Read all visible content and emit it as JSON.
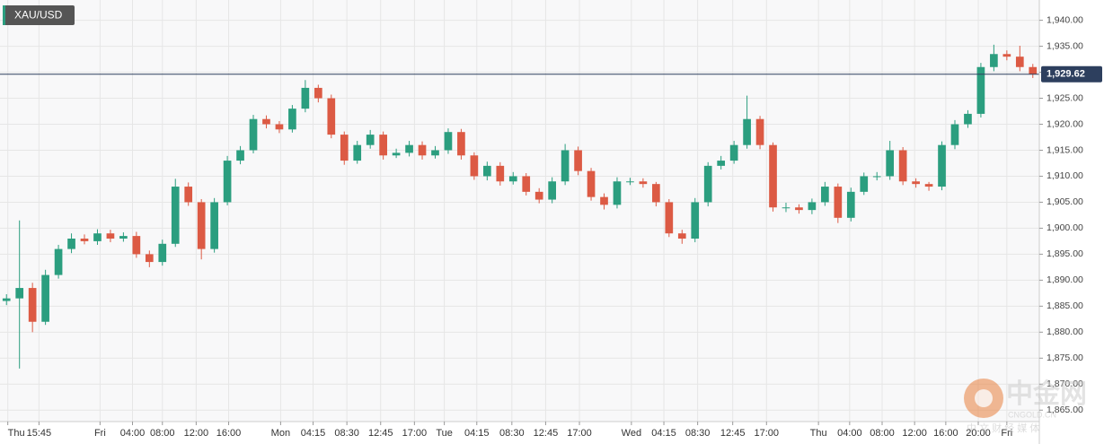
{
  "chart_data": {
    "type": "candlestick",
    "symbol": "XAU/USD",
    "xlim": [
      -0.5,
      79.5
    ],
    "ylim": [
      1862.8,
      1943.9
    ],
    "yticks": [
      {
        "value": 1865,
        "label": "1,865.00"
      },
      {
        "value": 1870,
        "label": "1,870.00"
      },
      {
        "value": 1875,
        "label": "1,875.00"
      },
      {
        "value": 1880,
        "label": "1,880.00"
      },
      {
        "value": 1885,
        "label": "1,885.00"
      },
      {
        "value": 1890,
        "label": "1,890.00"
      },
      {
        "value": 1895,
        "label": "1,895.00"
      },
      {
        "value": 1900,
        "label": "1,900.00"
      },
      {
        "value": 1905,
        "label": "1,905.00"
      },
      {
        "value": 1910,
        "label": "1,910.00"
      },
      {
        "value": 1915,
        "label": "1,915.00"
      },
      {
        "value": 1920,
        "label": "1,920.00"
      },
      {
        "value": 1925,
        "label": "1,925.00"
      },
      {
        "value": 1930,
        "label": "1,930.00"
      },
      {
        "value": 1935,
        "label": "1,935.00"
      },
      {
        "value": 1940,
        "label": "1,940.00"
      }
    ],
    "xticks": [
      {
        "value": 0.1,
        "label": "Thu"
      },
      {
        "value": 2.5,
        "label": "15:45"
      },
      {
        "value": 7.2,
        "label": "Fri"
      },
      {
        "value": 9.7,
        "label": "04:00"
      },
      {
        "value": 12.0,
        "label": "08:00"
      },
      {
        "value": 14.6,
        "label": "12:00"
      },
      {
        "value": 17.1,
        "label": "16:00"
      },
      {
        "value": 21.1,
        "label": "Mon"
      },
      {
        "value": 23.6,
        "label": "04:15"
      },
      {
        "value": 26.2,
        "label": "08:30"
      },
      {
        "value": 28.8,
        "label": "12:45"
      },
      {
        "value": 31.4,
        "label": "17:00"
      },
      {
        "value": 33.7,
        "label": "Tue"
      },
      {
        "value": 36.2,
        "label": "04:15"
      },
      {
        "value": 38.9,
        "label": "08:30"
      },
      {
        "value": 41.5,
        "label": "12:45"
      },
      {
        "value": 44.1,
        "label": "17:00"
      },
      {
        "value": 48.1,
        "label": "Wed"
      },
      {
        "value": 50.6,
        "label": "04:15"
      },
      {
        "value": 53.2,
        "label": "08:30"
      },
      {
        "value": 55.9,
        "label": "12:45"
      },
      {
        "value": 58.5,
        "label": "17:00"
      },
      {
        "value": 62.5,
        "label": "Thu"
      },
      {
        "value": 64.9,
        "label": "04:00"
      },
      {
        "value": 67.4,
        "label": "08:00"
      },
      {
        "value": 69.9,
        "label": "12:00"
      },
      {
        "value": 72.3,
        "label": "16:00"
      },
      {
        "value": 74.8,
        "label": "20:00"
      },
      {
        "value": 77.0,
        "label": "Fri"
      }
    ],
    "grid": true,
    "up_color": "#2b9e7f",
    "down_color": "#dc5a44",
    "last_price": {
      "value": 1929.62,
      "label": "1,929.62"
    },
    "open": [
      1886,
      1886.5,
      1888.5,
      1882,
      1891,
      1896,
      1898,
      1897.5,
      1899,
      1898,
      1898.5,
      1895,
      1893.5,
      1897,
      1908,
      1905,
      1896,
      1905,
      1913,
      1915,
      1921,
      1920,
      1919,
      1923,
      1927,
      1925,
      1918,
      1913,
      1916,
      1918,
      1914,
      1914.5,
      1916,
      1914,
      1915,
      1918.5,
      1914,
      1910,
      1912,
      1909,
      1910,
      1907,
      1905.5,
      1909,
      1915,
      1911,
      1906,
      1904.5,
      1909,
      1909,
      1908.5,
      1905,
      1899,
      1898,
      1905,
      1912,
      1913,
      1916,
      1921,
      1916,
      1904,
      1904,
      1903.5,
      1905,
      1908,
      1902,
      1907,
      1910,
      1910,
      1915,
      1909,
      1908.5,
      1908,
      1916,
      1920,
      1922,
      1931,
      1933.5,
      1933,
      1931
    ],
    "high": [
      1887.3,
      1901.5,
      1889.5,
      1892,
      1896.8,
      1899,
      1898.8,
      1899.8,
      1899.7,
      1899.2,
      1899.3,
      1895.7,
      1897.8,
      1909.5,
      1908.8,
      1905.6,
      1905.8,
      1913.9,
      1915.8,
      1921.8,
      1921.7,
      1920.6,
      1923.7,
      1928.5,
      1927.6,
      1925.7,
      1918.6,
      1916.8,
      1918.9,
      1918.6,
      1915.3,
      1916.8,
      1916.7,
      1915.8,
      1919.2,
      1919.1,
      1914.6,
      1912.8,
      1912.7,
      1910.8,
      1910.6,
      1907.7,
      1909.8,
      1916.2,
      1915.7,
      1911.6,
      1906.7,
      1909.8,
      1909.7,
      1909.6,
      1908.9,
      1905.6,
      1899.7,
      1905.8,
      1912.7,
      1913.9,
      1916.8,
      1925.5,
      1921.6,
      1916.5,
      1904.9,
      1904.6,
      1905.7,
      1908.9,
      1908.6,
      1907.8,
      1910.7,
      1910.8,
      1916.8,
      1915.6,
      1909.6,
      1908.9,
      1916.7,
      1920.8,
      1922.7,
      1931.8,
      1935.3,
      1934.2,
      1935.1,
      1931.6
    ],
    "low": [
      1885.2,
      1873,
      1880,
      1881.4,
      1890.3,
      1895.2,
      1896.9,
      1896.8,
      1897.3,
      1897.4,
      1894.3,
      1892.5,
      1892.8,
      1896.4,
      1904.3,
      1894,
      1895.3,
      1904.4,
      1912.3,
      1914.4,
      1919.2,
      1918.3,
      1918.4,
      1922.3,
      1924.2,
      1917.3,
      1912.2,
      1912.4,
      1915.3,
      1913.2,
      1913.5,
      1913.8,
      1913.2,
      1913.4,
      1914.3,
      1913.2,
      1909.3,
      1909.2,
      1908.2,
      1908.4,
      1906.3,
      1904.8,
      1904.8,
      1908.3,
      1910.2,
      1905.3,
      1903.6,
      1903.8,
      1908.3,
      1907.8,
      1904.2,
      1898.3,
      1897,
      1897.3,
      1904.2,
      1911.3,
      1912.4,
      1915.3,
      1915.2,
      1903.2,
      1903.1,
      1902.8,
      1902.7,
      1904.3,
      1901,
      1901.3,
      1906.4,
      1909.2,
      1909.3,
      1908.3,
      1907.8,
      1907.2,
      1907.3,
      1915.2,
      1919.3,
      1921.3,
      1930.2,
      1932.3,
      1930.2,
      1928.9
    ],
    "close": [
      1886.5,
      1888.5,
      1882,
      1891,
      1896,
      1898,
      1897.5,
      1899,
      1898,
      1898.5,
      1895,
      1893.5,
      1897,
      1908,
      1905,
      1896,
      1905,
      1913,
      1915,
      1921,
      1920,
      1919,
      1923,
      1927,
      1925,
      1918,
      1913,
      1916,
      1918,
      1914,
      1914.5,
      1916,
      1914,
      1915,
      1918.5,
      1914,
      1910,
      1912,
      1909,
      1910,
      1907,
      1905.5,
      1909,
      1915,
      1911,
      1906,
      1904.5,
      1909,
      1909,
      1908.5,
      1905,
      1899,
      1898,
      1905,
      1912,
      1913,
      1916,
      1921,
      1916,
      1904,
      1904,
      1903.5,
      1905,
      1908,
      1902,
      1907,
      1910,
      1910,
      1915,
      1909,
      1908.5,
      1908,
      1916,
      1920,
      1922,
      1931,
      1933.5,
      1933,
      1931,
      1929.62
    ]
  },
  "watermark": {
    "brand": "中金网",
    "site": "CNGOLD.CN",
    "tagline": "中 文 财 经 媒 体"
  }
}
